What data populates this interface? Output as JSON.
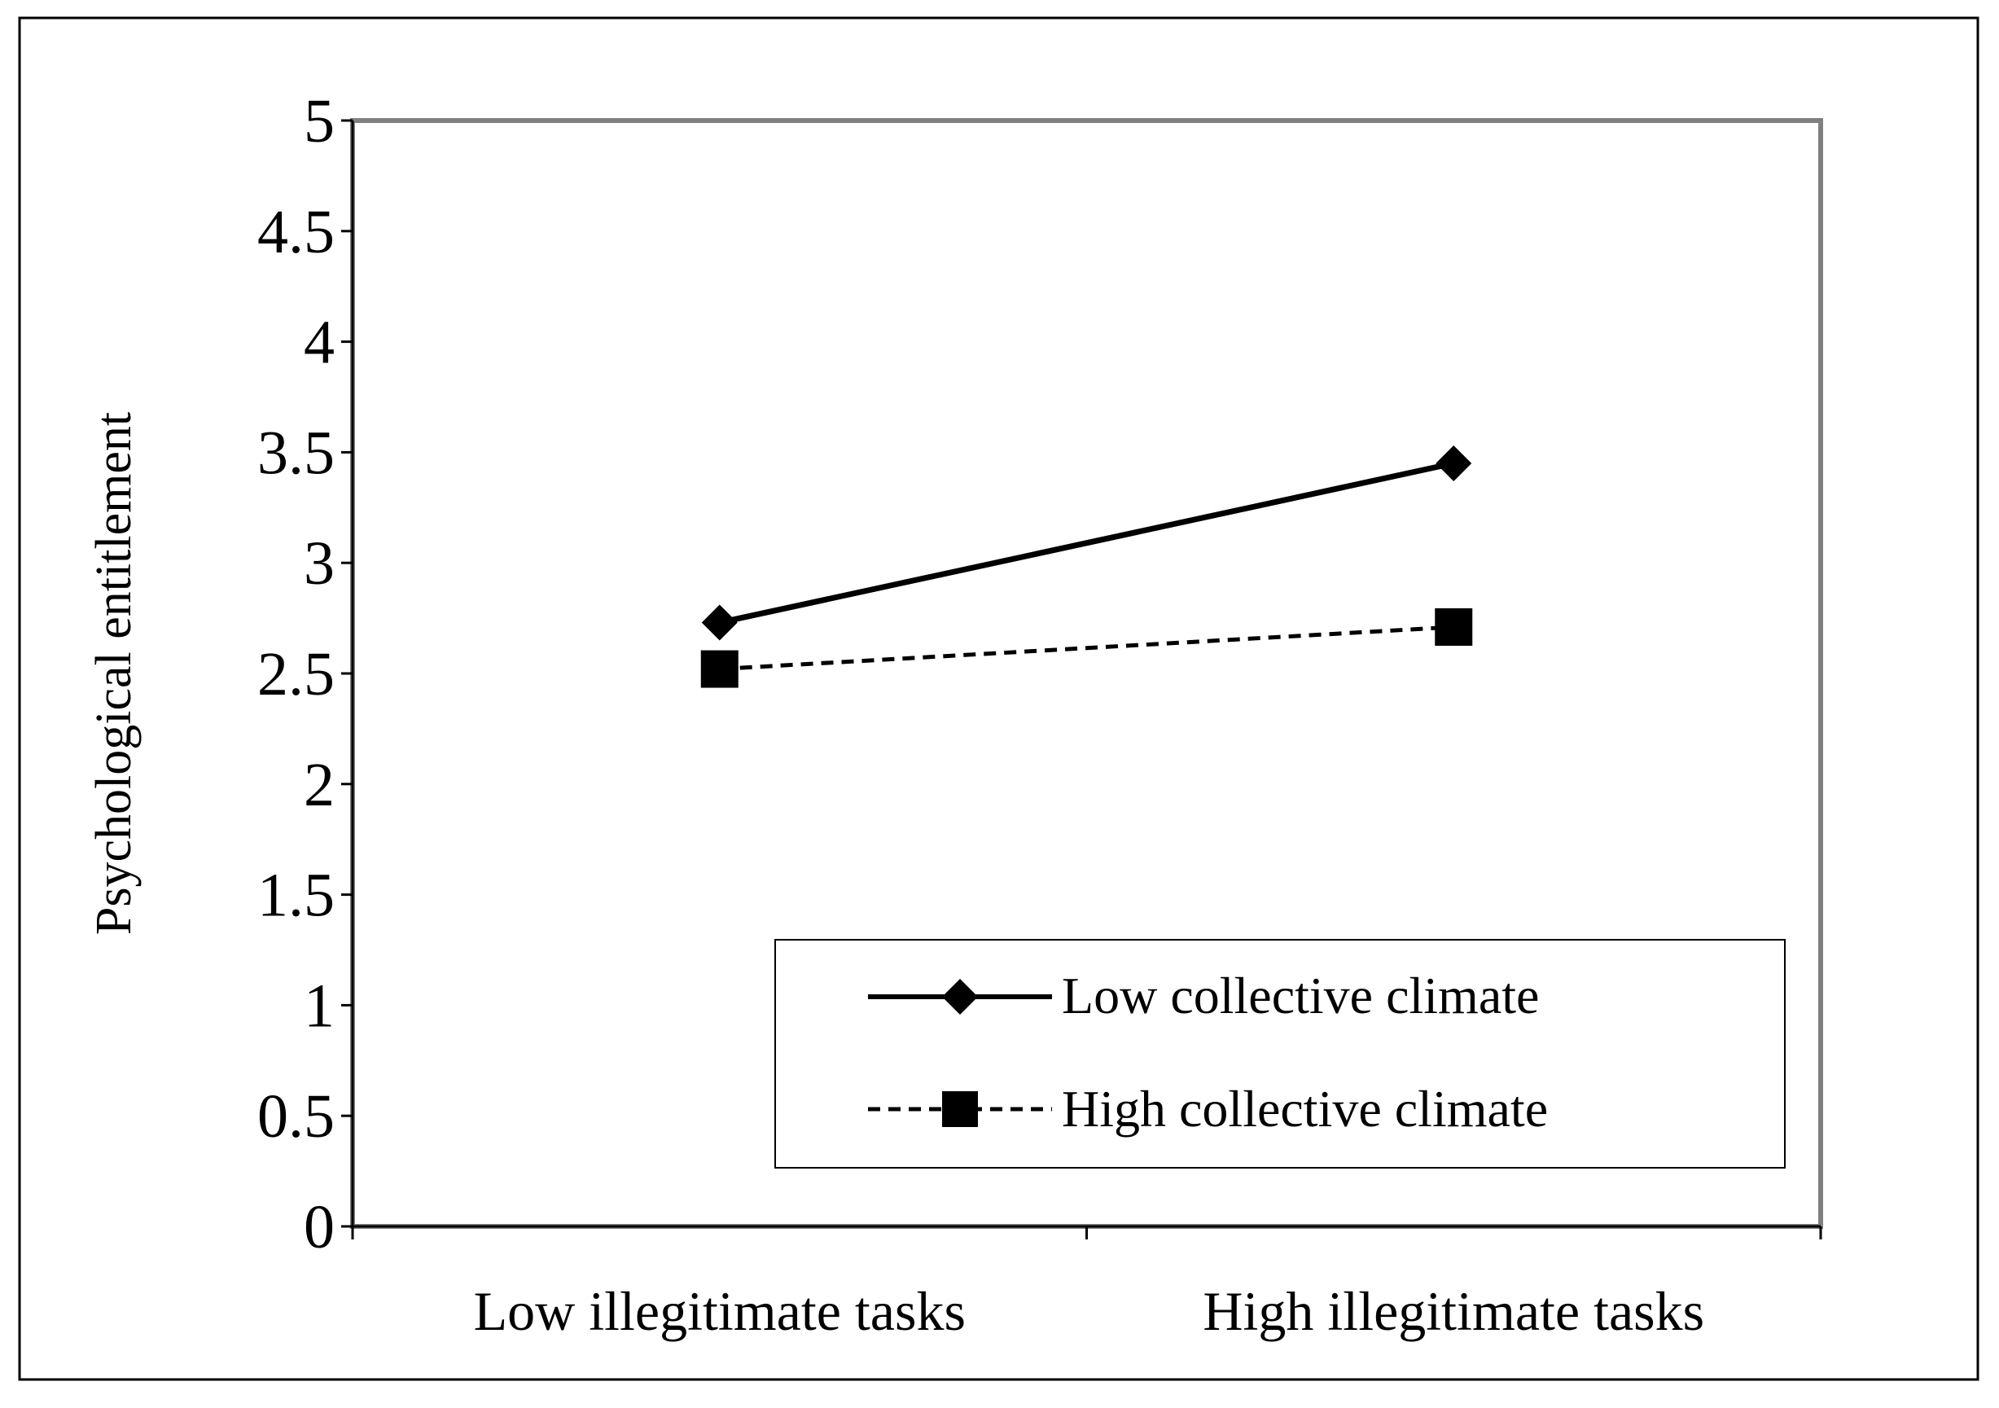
{
  "chart_data": {
    "type": "line",
    "title": "",
    "xlabel": "",
    "ylabel": "Psychological entitlement",
    "categories": [
      "Low illegitimate tasks",
      "High illegitimate tasks"
    ],
    "ylim": [
      0,
      5
    ],
    "yticks": [
      "0",
      "0.5",
      "1",
      "1.5",
      "2",
      "2.5",
      "3",
      "3.5",
      "4",
      "4.5",
      "5"
    ],
    "grid": false,
    "legend_position": "bottom-right",
    "series": [
      {
        "name": "Low collective climate",
        "values": [
          2.73,
          3.45
        ],
        "line_style": "solid",
        "marker": "diamond",
        "color": "#000000"
      },
      {
        "name": "High collective climate",
        "values": [
          2.52,
          2.71
        ],
        "line_style": "dashed",
        "marker": "square",
        "color": "#000000"
      }
    ]
  }
}
